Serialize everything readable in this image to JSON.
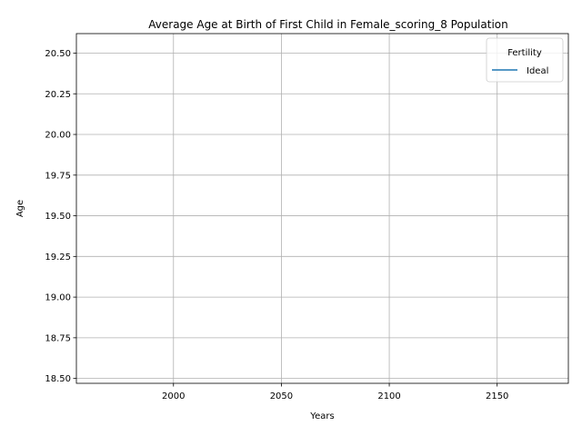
{
  "chart_data": {
    "type": "line",
    "title": "Average Age at Birth of First Child in Female_scoring_8 Population",
    "xlabel": "Years",
    "ylabel": "Age",
    "xlim": [
      1955,
      2183
    ],
    "ylim": [
      18.47,
      20.62
    ],
    "xticks": [
      2000,
      2050,
      2100,
      2150
    ],
    "yticks": [
      "18.50",
      "18.75",
      "19.00",
      "19.25",
      "19.50",
      "19.75",
      "20.00",
      "20.25",
      "20.50"
    ],
    "grid": true,
    "legend": {
      "title": "Fertility",
      "position": "top-right"
    },
    "series": [
      {
        "name": "Ideal",
        "color": "#1f77b4",
        "x": [],
        "y": []
      }
    ]
  }
}
